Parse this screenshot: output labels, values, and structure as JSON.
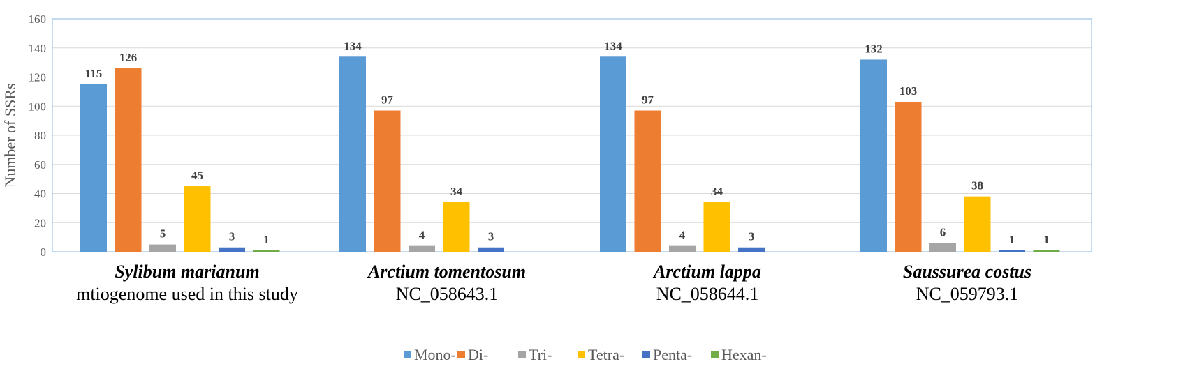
{
  "chart_data": {
    "type": "bar",
    "ylabel": "Number of SSRs",
    "ylim": [
      0,
      160
    ],
    "yticks": [
      "0",
      "20",
      "40",
      "60",
      "80",
      "100",
      "120",
      "140",
      "160"
    ],
    "grid": true,
    "legend_position": "bottom",
    "groups": [
      {
        "name": "Sylibum marianum",
        "sub": "mtiogenome used in this study"
      },
      {
        "name": "Arctium tomentosum",
        "sub": "NC_058643.1"
      },
      {
        "name": "Arctium lappa",
        "sub": "NC_058644.1"
      },
      {
        "name": "Saussurea costus",
        "sub": "NC_059793.1"
      }
    ],
    "series": [
      {
        "name": "Mono-",
        "color": "#5b9bd5",
        "values": [
          115,
          134,
          134,
          132
        ]
      },
      {
        "name": "Di-",
        "color": "#ed7d31",
        "values": [
          126,
          97,
          97,
          103
        ]
      },
      {
        "name": "Tri-",
        "color": "#a5a5a5",
        "values": [
          5,
          4,
          4,
          6
        ]
      },
      {
        "name": "Tetra-",
        "color": "#ffc000",
        "values": [
          45,
          34,
          34,
          38
        ]
      },
      {
        "name": "Penta-",
        "color": "#4472c4",
        "values": [
          3,
          3,
          3,
          1
        ]
      },
      {
        "name": "Hexan-",
        "color": "#70ad47",
        "values": [
          1,
          null,
          null,
          1
        ]
      }
    ]
  }
}
